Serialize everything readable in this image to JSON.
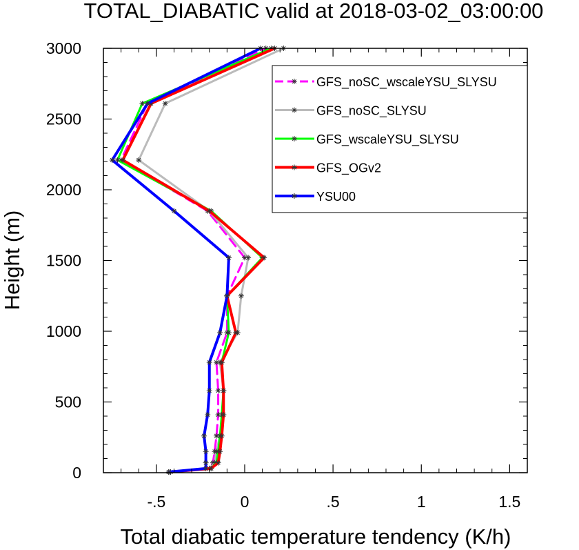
{
  "chart_data": {
    "type": "line",
    "title": "TOTAL_DIABATIC valid at 2018-03-02_03:00:00",
    "xlabel": "Total diabatic temperature tendency (K/h)",
    "ylabel": "Height (m)",
    "xlim": [
      -0.8,
      1.6
    ],
    "ylim": [
      0,
      3000
    ],
    "x_ticks": [
      -0.5,
      0,
      0.5,
      1,
      1.5
    ],
    "x_tick_labels": [
      "-.5",
      "0",
      ".5",
      "1",
      "1.5"
    ],
    "y_ticks": [
      0,
      500,
      1000,
      1500,
      2000,
      2500,
      3000
    ],
    "y_tick_labels": [
      "0",
      "500",
      "1000",
      "1500",
      "2000",
      "2500",
      "3000"
    ],
    "grid": false,
    "legend_position": "top-right",
    "series": [
      {
        "name": "GFS_noSC_wscaleYSU_SLYSU",
        "color": "#ff00ff",
        "dash": "dashed",
        "width": 3,
        "x": [
          -0.43,
          -0.2,
          -0.18,
          -0.17,
          -0.16,
          -0.15,
          -0.15,
          -0.16,
          -0.1,
          -0.1,
          0.0,
          -0.21,
          -0.7,
          -0.55,
          0.12
        ],
        "y": [
          5,
          30,
          70,
          150,
          260,
          410,
          580,
          780,
          990,
          1250,
          1520,
          1850,
          2210,
          2610,
          3000
        ]
      },
      {
        "name": "GFS_noSC_SLYSU",
        "color": "#bbbbbb",
        "dash": "solid",
        "width": 3,
        "x": [
          -0.42,
          -0.2,
          -0.17,
          -0.16,
          -0.14,
          -0.12,
          -0.12,
          -0.14,
          -0.04,
          -0.02,
          0.02,
          -0.2,
          -0.6,
          -0.45,
          0.22
        ],
        "y": [
          5,
          30,
          70,
          150,
          260,
          410,
          580,
          780,
          990,
          1250,
          1520,
          1850,
          2210,
          2610,
          3000
        ]
      },
      {
        "name": "GFS_wscaleYSU_SLYSU",
        "color": "#00ff00",
        "dash": "solid",
        "width": 3,
        "x": [
          -0.43,
          -0.19,
          -0.16,
          -0.15,
          -0.14,
          -0.13,
          -0.12,
          -0.13,
          -0.09,
          -0.1,
          0.1,
          -0.19,
          -0.72,
          -0.58,
          0.15
        ],
        "y": [
          5,
          30,
          70,
          150,
          260,
          410,
          580,
          780,
          990,
          1250,
          1520,
          1850,
          2210,
          2610,
          3000
        ]
      },
      {
        "name": "GFS_OGv2",
        "color": "#ff0000",
        "dash": "solid",
        "width": 4,
        "x": [
          -0.42,
          -0.19,
          -0.15,
          -0.14,
          -0.13,
          -0.12,
          -0.12,
          -0.13,
          -0.05,
          -0.1,
          0.11,
          -0.2,
          -0.69,
          -0.53,
          0.17
        ],
        "y": [
          5,
          30,
          70,
          150,
          260,
          410,
          580,
          780,
          990,
          1250,
          1520,
          1850,
          2210,
          2610,
          3000
        ]
      },
      {
        "name": "YSU00",
        "color": "#0000ff",
        "dash": "solid",
        "width": 4,
        "x": [
          -0.43,
          -0.22,
          -0.22,
          -0.22,
          -0.23,
          -0.21,
          -0.2,
          -0.2,
          -0.14,
          -0.1,
          -0.09,
          -0.4,
          -0.75,
          -0.55,
          0.09
        ],
        "y": [
          5,
          30,
          70,
          150,
          260,
          410,
          580,
          780,
          990,
          1250,
          1520,
          1850,
          2210,
          2610,
          3000
        ]
      }
    ]
  }
}
